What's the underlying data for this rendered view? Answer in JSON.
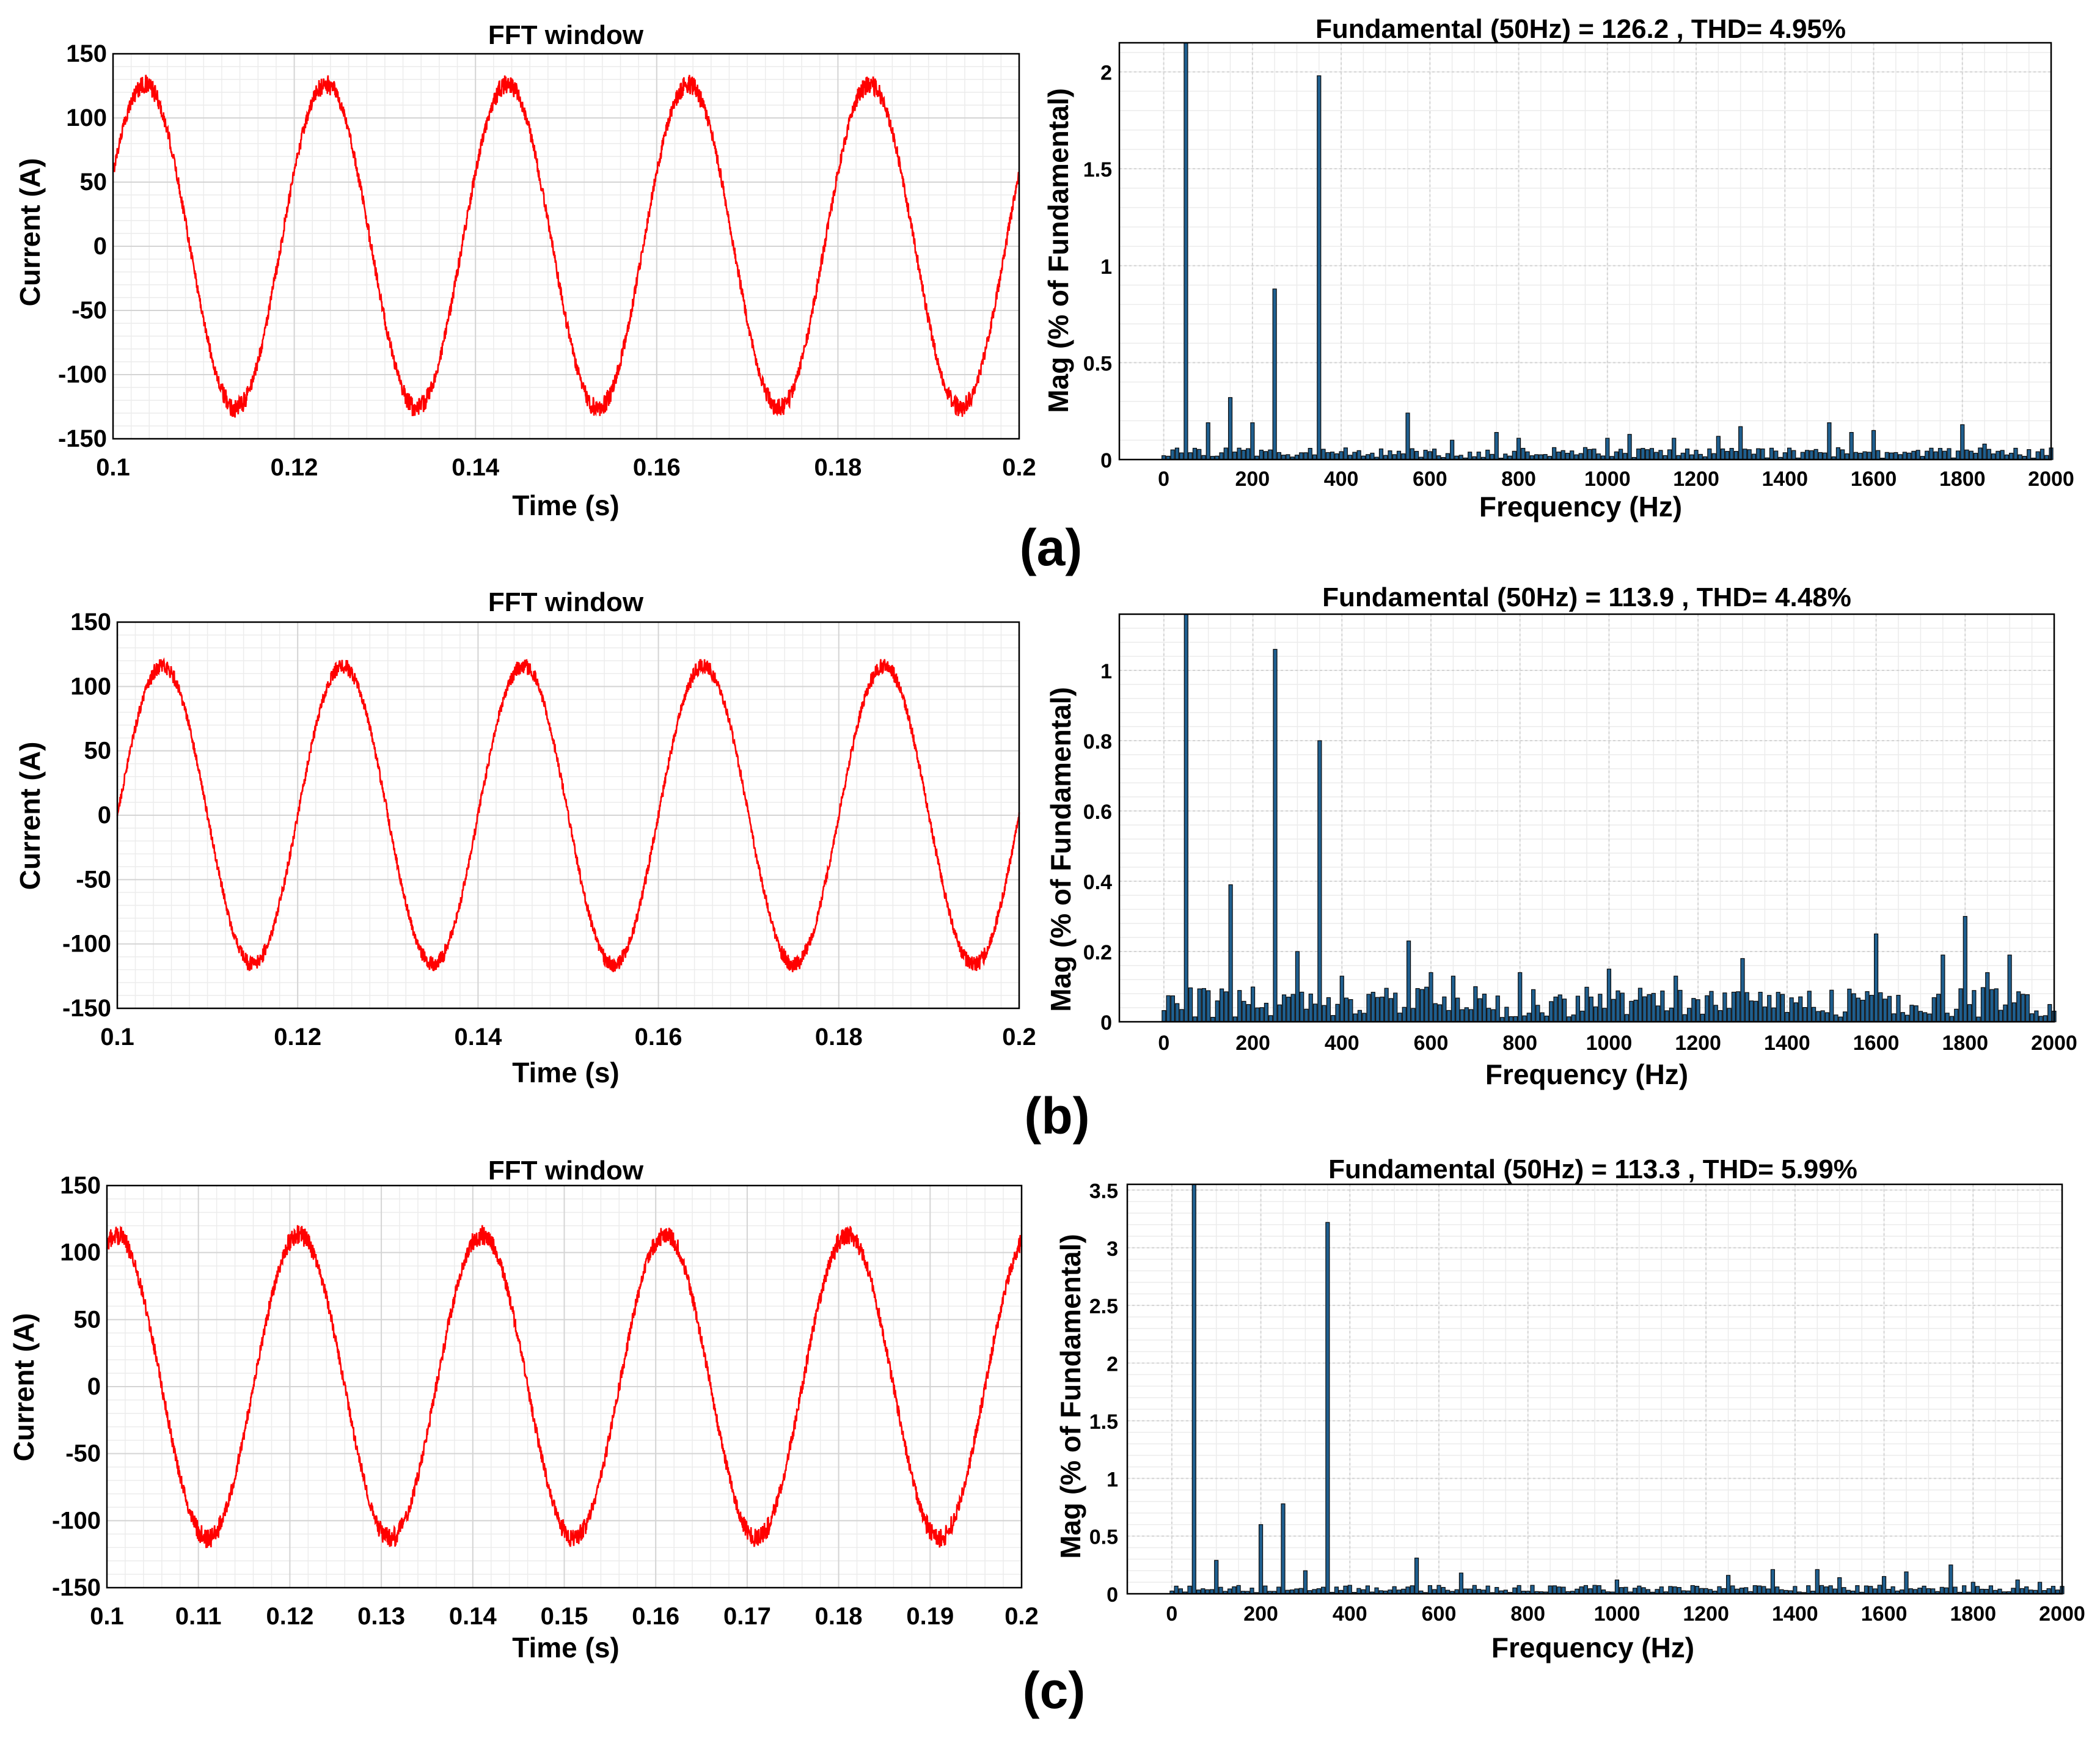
{
  "colors": {
    "wave": "#ff0000",
    "bar_fill": "#1f5f8f",
    "bar_edge": "#0a0a0a",
    "grid": "#d4d4d4",
    "axis": "#000000"
  },
  "panel_labels": [
    "(a)",
    "(b)",
    "(c)"
  ],
  "chart_data": [
    {
      "type": "line",
      "panel": "(a)",
      "title": "FFT window",
      "xlabel": "Time (s)",
      "ylabel": "Current (A)",
      "xlim": [
        0.1,
        0.2
      ],
      "ylim": [
        -150,
        150
      ],
      "xticks": [
        0.1,
        0.12,
        0.14,
        0.16,
        0.18,
        0.2
      ],
      "xtick_labels": [
        "0.1",
        "0.12",
        "0.14",
        "0.16",
        "0.18",
        "0.2"
      ],
      "yticks": [
        -150,
        -100,
        -50,
        0,
        50,
        100,
        150
      ],
      "series": [
        {
          "name": "current",
          "waveform": "sine",
          "frequency_hz": 50,
          "amplitude_a": 126.2,
          "phase_deg": 27,
          "noise_a": 5
        }
      ]
    },
    {
      "type": "bar",
      "panel": "(a)",
      "title": "Fundamental (50Hz) = 126.2 , THD= 4.95%",
      "xlabel": "Frequency (Hz)",
      "ylabel": "Mag (% of Fundamental)",
      "xlim": [
        -100,
        2000
      ],
      "ylim": [
        0,
        2.15
      ],
      "xticks": [
        0,
        200,
        400,
        600,
        800,
        1000,
        1200,
        1400,
        1600,
        1800,
        2000
      ],
      "yticks": [
        0,
        0.5,
        1,
        1.5,
        2
      ],
      "ytick_labels": [
        "0",
        "0.5",
        "1",
        "1.5",
        "2"
      ],
      "bar_width_hz": 10,
      "x": [
        50,
        100,
        150,
        200,
        250,
        350,
        550,
        650,
        750,
        800,
        1000,
        1050,
        1150,
        1250,
        1300,
        1500,
        1550,
        1600,
        1800,
        1850,
        2000
      ],
      "values": [
        2.15,
        0.19,
        0.32,
        0.19,
        0.88,
        1.98,
        0.24,
        0.1,
        0.14,
        0.11,
        0.11,
        0.13,
        0.11,
        0.12,
        0.17,
        0.19,
        0.14,
        0.15,
        0.18,
        0.08,
        0.06
      ],
      "noise_floor": 0.05,
      "noise_spacing_hz": 10
    },
    {
      "type": "line",
      "panel": "(b)",
      "title": "FFT window",
      "xlabel": "Time (s)",
      "ylabel": "Current (A)",
      "xlim": [
        0.1,
        0.2
      ],
      "ylim": [
        -150,
        150
      ],
      "xticks": [
        0.1,
        0.12,
        0.14,
        0.16,
        0.18,
        0.2
      ],
      "xtick_labels": [
        "0.1",
        "0.12",
        "0.14",
        "0.16",
        "0.18",
        "0.2"
      ],
      "yticks": [
        -150,
        -100,
        -50,
        0,
        50,
        100,
        150
      ],
      "series": [
        {
          "name": "current",
          "waveform": "sine",
          "frequency_hz": 50,
          "amplitude_a": 116,
          "phase_deg": 0,
          "noise_a": 4
        }
      ]
    },
    {
      "type": "bar",
      "panel": "(b)",
      "title": "Fundamental (50Hz) = 113.9 , THD= 4.48%",
      "xlabel": "Frequency (Hz)",
      "ylabel": "Mag (% of Fundamental)",
      "xlim": [
        -100,
        2000
      ],
      "ylim": [
        0,
        1.16
      ],
      "xticks": [
        0,
        200,
        400,
        600,
        800,
        1000,
        1200,
        1400,
        1600,
        1800,
        2000
      ],
      "yticks": [
        0,
        0.2,
        0.4,
        0.6,
        0.8,
        1
      ],
      "ytick_labels": [
        "0",
        "0.2",
        "0.4",
        "0.6",
        "0.8",
        "1"
      ],
      "bar_width_hz": 10,
      "x": [
        50,
        150,
        250,
        300,
        350,
        400,
        550,
        600,
        650,
        700,
        800,
        1000,
        1150,
        1300,
        1500,
        1550,
        1600,
        1750,
        1800,
        1850,
        1900
      ],
      "values": [
        1.16,
        0.39,
        1.06,
        0.2,
        0.8,
        0.13,
        0.23,
        0.14,
        0.13,
        0.1,
        0.14,
        0.15,
        0.13,
        0.18,
        0.09,
        0.08,
        0.25,
        0.19,
        0.3,
        0.14,
        0.19
      ],
      "noise_floor": 0.08,
      "noise_spacing_hz": 10
    },
    {
      "type": "line",
      "panel": "(c)",
      "title": "FFT window",
      "xlabel": "Time (s)",
      "ylabel": "Current (A)",
      "xlim": [
        0.1,
        0.2
      ],
      "ylim": [
        -150,
        150
      ],
      "xticks": [
        0.1,
        0.11,
        0.12,
        0.13,
        0.14,
        0.15,
        0.16,
        0.17,
        0.18,
        0.19,
        0.2
      ],
      "xtick_labels": [
        "0.1",
        "0.11",
        "0.12",
        "0.13",
        "0.14",
        "0.15",
        "0.16",
        "0.17",
        "0.18",
        "0.19",
        "0.2"
      ],
      "yticks": [
        -150,
        -100,
        -50,
        0,
        50,
        100,
        150
      ],
      "series": [
        {
          "name": "current",
          "waveform": "sine",
          "frequency_hz": 50,
          "amplitude_a": 113.3,
          "phase_deg": 72,
          "noise_a": 5
        }
      ]
    },
    {
      "type": "bar",
      "panel": "(c)",
      "title": "Fundamental (50Hz) = 113.3 , THD= 5.99%",
      "xlabel": "Frequency (Hz)",
      "ylabel": "Mag (% of Fundamental)",
      "xlim": [
        -100,
        2000
      ],
      "ylim": [
        0,
        3.55
      ],
      "xticks": [
        0,
        200,
        400,
        600,
        800,
        1000,
        1200,
        1400,
        1600,
        1800,
        2000
      ],
      "yticks": [
        0,
        0.5,
        1,
        1.5,
        2,
        2.5,
        3,
        3.5
      ],
      "ytick_labels": [
        "0",
        "0.5",
        "1",
        "1.5",
        "2",
        "2.5",
        "3",
        "3.5"
      ],
      "bar_width_hz": 10,
      "x": [
        50,
        100,
        200,
        250,
        300,
        350,
        550,
        650,
        1000,
        1250,
        1350,
        1450,
        1500,
        1600,
        1650,
        1750,
        1800,
        1900,
        1950
      ],
      "values": [
        3.55,
        0.29,
        0.6,
        0.78,
        0.2,
        3.22,
        0.31,
        0.18,
        0.12,
        0.16,
        0.21,
        0.21,
        0.14,
        0.15,
        0.19,
        0.25,
        0.1,
        0.12,
        0.1
      ],
      "noise_floor": 0.06,
      "noise_spacing_hz": 10
    }
  ]
}
